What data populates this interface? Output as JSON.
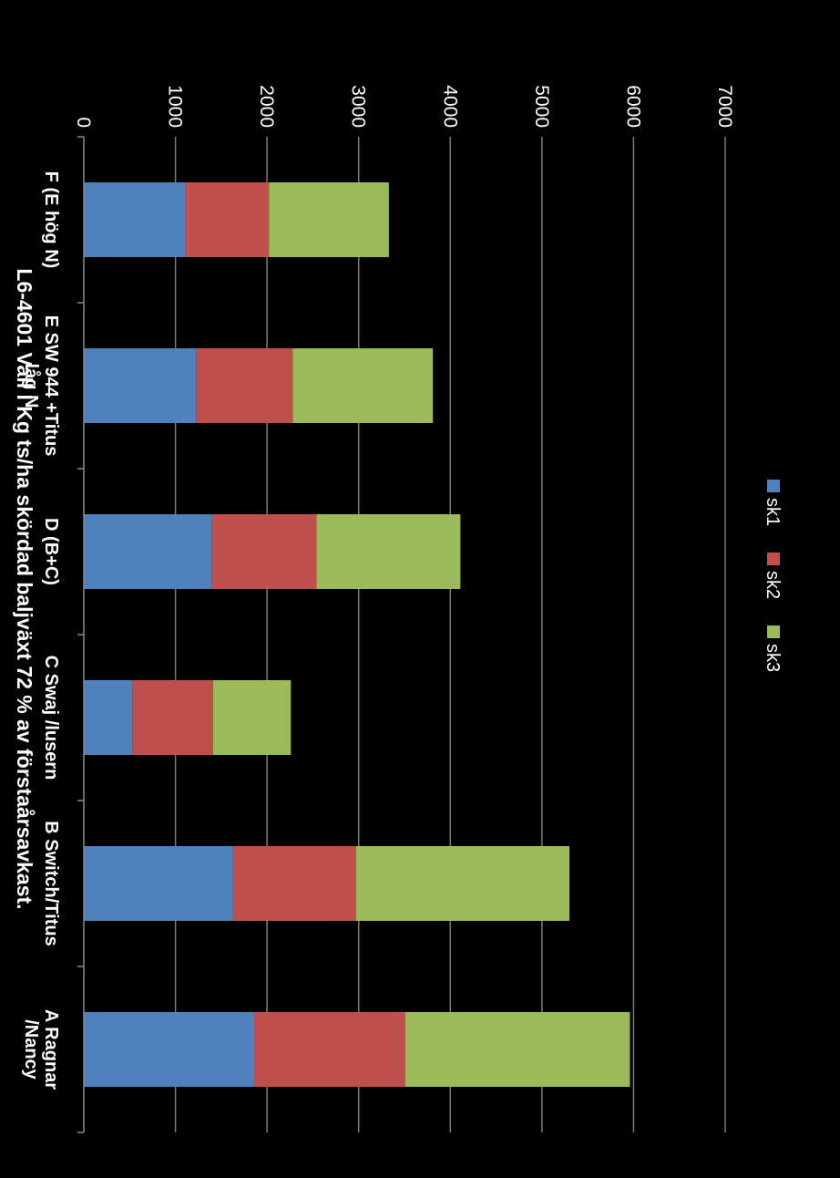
{
  "chart_data": {
    "type": "bar",
    "orientation": "vertical",
    "stacked": true,
    "title": "L6-4601 Vall I Kg ts/ha skördad  baljväxt  72 % av förstaårsavkast.",
    "categories": [
      [
        "A   Ragnar",
        "/Nancy"
      ],
      [
        "B Switch/Titus"
      ],
      [
        "C Swaj /lusern"
      ],
      [
        "D (B+C)"
      ],
      [
        "E SW 944 +Titus",
        "låg N"
      ],
      [
        "F (E hög N)"
      ]
    ],
    "series": [
      {
        "name": "sk1",
        "color": "#4f81bd",
        "values": [
          1860,
          1630,
          530,
          1400,
          1230,
          1110
        ]
      },
      {
        "name": "sk2",
        "color": "#c0504d",
        "values": [
          1650,
          1340,
          880,
          1140,
          1050,
          910
        ]
      },
      {
        "name": "sk3",
        "color": "#9bbb59",
        "values": [
          2450,
          2330,
          850,
          1570,
          1530,
          1310
        ]
      }
    ],
    "y_ticks": [
      "0",
      "1000",
      "2000",
      "3000",
      "4000",
      "5000",
      "6000",
      "7000"
    ],
    "ylim": [
      0,
      7000
    ],
    "grid": true,
    "legend_position": "top"
  }
}
